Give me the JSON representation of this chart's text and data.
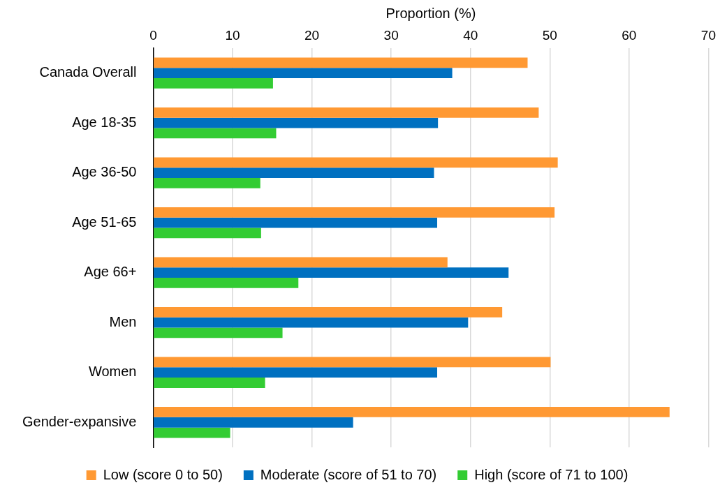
{
  "chart_data": {
    "type": "bar",
    "orientation": "horizontal",
    "xlabel": "Proportion (%)",
    "categories": [
      "Canada Overall",
      "Age 18-35",
      "Age 36-50",
      "Age 51-65",
      "Age 66+",
      "Men",
      "Women",
      "Gender-expansive"
    ],
    "series": [
      {
        "name": "Low (score 0 to 50)",
        "color": "#ff9933",
        "values": [
          47.2,
          48.6,
          51.0,
          50.6,
          37.1,
          44.0,
          50.1,
          65.1
        ]
      },
      {
        "name": "Moderate (score of 51 to 70)",
        "color": "#0070c0",
        "values": [
          37.7,
          35.9,
          35.4,
          35.8,
          44.8,
          39.7,
          35.8,
          25.2
        ]
      },
      {
        "name": "High (score of 71 to 100)",
        "color": "#33cc33",
        "values": [
          15.1,
          15.5,
          13.5,
          13.6,
          18.3,
          16.3,
          14.1,
          9.7
        ]
      }
    ],
    "xlim": [
      0,
      70
    ],
    "xticks": [
      0,
      10,
      20,
      30,
      40,
      50,
      60,
      70
    ],
    "grid": "x",
    "legend": "bottom"
  }
}
